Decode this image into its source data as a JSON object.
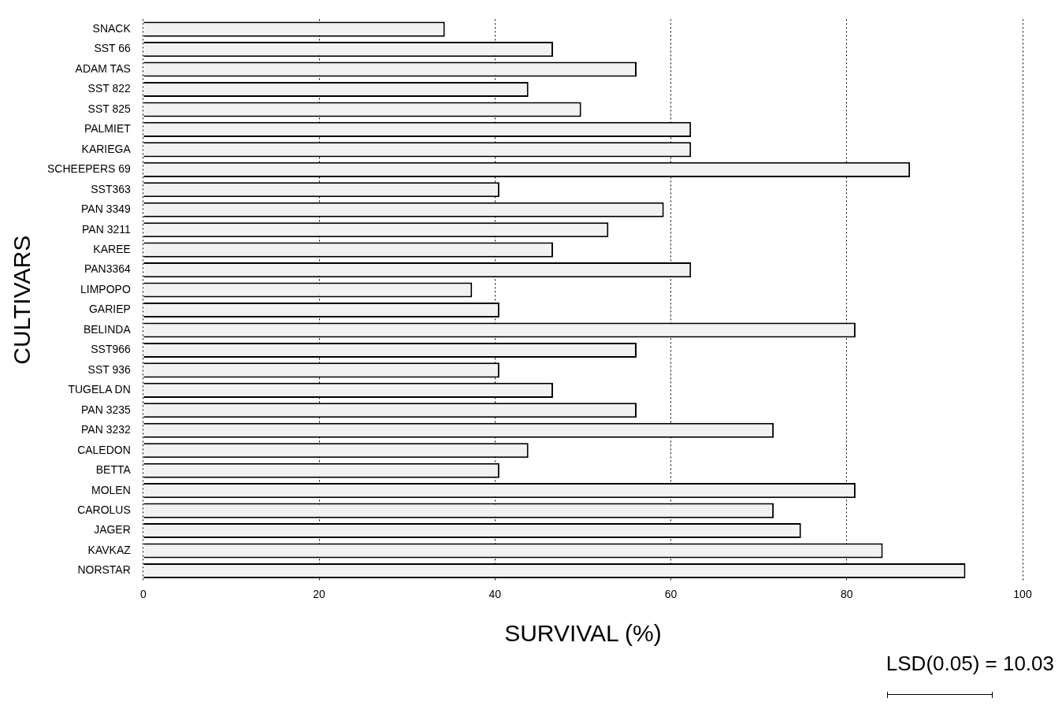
{
  "chart_data": {
    "type": "bar",
    "orientation": "horizontal",
    "xlabel": "SURVIVAL (%)",
    "ylabel": "CULTIVARS",
    "categories": [
      "SNACK",
      "SST 66",
      "ADAM TAS",
      "SST 822",
      "SST 825",
      "PALMIET",
      "KARIEGA",
      "SCHEEPERS 69",
      "SST363",
      "PAN 3349",
      "PAN 3211",
      "KAREE",
      "PAN3364",
      "LIMPOPO",
      "GARIEP",
      "BELINDA",
      "SST966",
      "SST 936",
      "TUGELA DN",
      "PAN 3235",
      "PAN 3232",
      "CALEDON",
      "BETTA",
      "MOLEN",
      "CAROLUS",
      "JAGER",
      "KAVKAZ",
      "NORSTAR"
    ],
    "values": [
      34.3,
      46.6,
      56.1,
      43.8,
      49.8,
      62.3,
      62.3,
      87.2,
      40.5,
      59.2,
      52.9,
      46.6,
      62.3,
      37.4,
      40.5,
      81.0,
      56.1,
      40.5,
      46.6,
      56.1,
      71.7,
      43.8,
      40.5,
      81.0,
      71.7,
      74.8,
      84.1,
      93.5
    ],
    "color": "#f2f2f2",
    "xlim": [
      0,
      100
    ],
    "xticks": [
      0,
      20,
      40,
      60,
      80,
      100
    ],
    "grid": "x",
    "legend": false,
    "annotations": [
      "LSD(0.05) = 10.03"
    ]
  }
}
